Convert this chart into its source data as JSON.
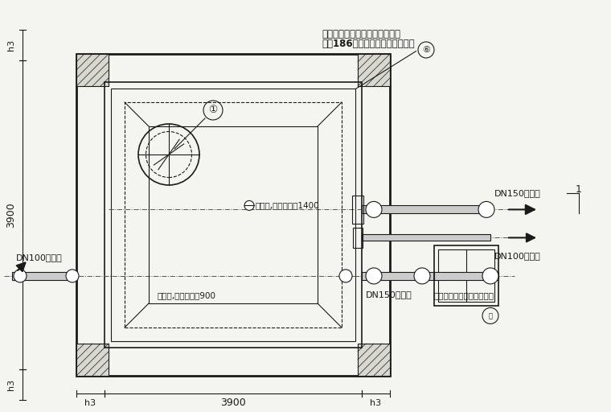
{
  "bg_color": "#f5f5f0",
  "line_color": "#1a1a1a",
  "title": "",
  "annotations": {
    "top_label1": "顶板预留水位传示装置孔，做法",
    "top_label2": "见第186页，安装要求详见总说明",
    "circle_label": "6",
    "vent_top": "通风管,高出覆土面1400",
    "vent_bottom": "通风管,高出覆土面900",
    "dn150_out": "DN150出水管",
    "dn100_filter": "DN100滤水管",
    "dn150_overflow": "DN150溢水管",
    "dn100_in": "DN100进水管",
    "size_note": "尺寸根据工程具体情况决定",
    "circle_num1": "1",
    "circle_num15": "15",
    "dim_3900_side": "3900",
    "dim_3900_bottom": "3900",
    "dim_h3_left_top": "h3",
    "dim_h3_left_bot": "h3",
    "dim_h3_bot_left": "h3",
    "dim_h3_bot_right": "h3",
    "dim_3900_left": "3900",
    "label_1_right": "1"
  },
  "colors": {
    "main": "#1a1a1a",
    "dashed": "#555555",
    "hatch": "#333333",
    "pipe": "#2a2a2a",
    "centerline": "#555555"
  }
}
